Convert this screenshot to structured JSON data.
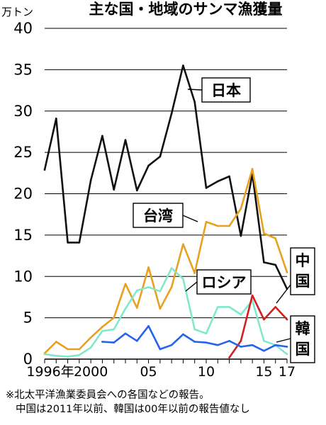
{
  "chart_data": {
    "type": "line",
    "title": "主な国・地域のサンマ漁獲量",
    "unit": "万トン",
    "ylim": [
      0,
      40
    ],
    "yticks": [
      0,
      5,
      10,
      15,
      20,
      25,
      30,
      35,
      40
    ],
    "ytick_labels": [
      "0",
      "5",
      "10",
      "15",
      "20",
      "25",
      "30",
      "35",
      "40"
    ],
    "xlim": [
      1996,
      2017
    ],
    "xticks": [
      1996,
      2000,
      2005,
      2010,
      2015,
      2017
    ],
    "xtick_labels": [
      "1996年",
      "2000",
      "05",
      "10",
      "15",
      "17"
    ],
    "grid": true,
    "series": [
      {
        "name": "日本",
        "color": "#111111",
        "x": [
          1996,
          1997,
          1998,
          1999,
          2000,
          2001,
          2002,
          2003,
          2004,
          2005,
          2006,
          2007,
          2008,
          2009,
          2010,
          2011,
          2012,
          2013,
          2014,
          2015,
          2016,
          2017
        ],
        "values": [
          22.9,
          29.1,
          14.1,
          14.1,
          21.6,
          27.0,
          20.5,
          26.5,
          20.4,
          23.4,
          24.5,
          29.7,
          35.5,
          31.1,
          20.7,
          21.5,
          22.1,
          14.9,
          22.4,
          11.7,
          11.4,
          8.5
        ]
      },
      {
        "name": "台湾",
        "color": "#e8a020",
        "x": [
          1996,
          1997,
          1998,
          1999,
          2000,
          2001,
          2002,
          2003,
          2004,
          2005,
          2006,
          2007,
          2008,
          2009,
          2010,
          2011,
          2012,
          2013,
          2014,
          2015,
          2016,
          2017
        ],
        "values": [
          0.7,
          2.1,
          1.2,
          1.2,
          2.6,
          3.9,
          5.0,
          9.1,
          6.2,
          11.1,
          6.1,
          8.7,
          13.9,
          10.4,
          16.6,
          16.1,
          16.1,
          18.2,
          23.0,
          15.2,
          14.6,
          10.5
        ]
      },
      {
        "name": "ロシア",
        "color": "#80e8cc",
        "x": [
          1996,
          1997,
          1998,
          1999,
          2000,
          2001,
          2002,
          2003,
          2004,
          2005,
          2006,
          2007,
          2008,
          2009,
          2010,
          2011,
          2012,
          2013,
          2014,
          2015,
          2016,
          2017
        ],
        "values": [
          0.6,
          0.4,
          0.3,
          0.5,
          1.4,
          3.4,
          3.6,
          6.1,
          8.3,
          8.7,
          8.2,
          11.0,
          9.7,
          3.6,
          3.1,
          6.3,
          6.3,
          5.4,
          7.1,
          2.2,
          1.7,
          0.6
        ]
      },
      {
        "name": "中国",
        "color": "#d02020",
        "x": [
          2012,
          2013,
          2014,
          2015,
          2016,
          2017
        ],
        "values": [
          0.2,
          2.2,
          7.7,
          4.8,
          6.3,
          4.8
        ]
      },
      {
        "name": "韓国",
        "color": "#2563eb",
        "x": [
          2001,
          2002,
          2003,
          2004,
          2005,
          2006,
          2007,
          2008,
          2009,
          2010,
          2011,
          2012,
          2013,
          2014,
          2015,
          2016,
          2017
        ],
        "values": [
          2.1,
          2.0,
          3.1,
          2.2,
          4.0,
          1.2,
          1.7,
          3.0,
          2.1,
          2.0,
          1.7,
          2.2,
          1.5,
          1.7,
          1.0,
          1.7,
          1.5
        ]
      }
    ]
  },
  "note_lines": [
    "※北太平洋漁業委員会への各国などの報告。",
    "中国は2011年以前、韓国は00年以前の報告値なし"
  ]
}
